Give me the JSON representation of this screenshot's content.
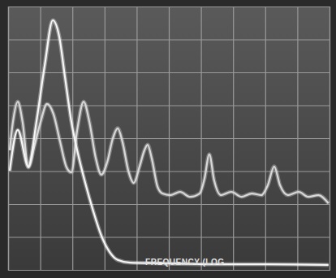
{
  "chart_data": {
    "type": "line",
    "xlabel": "FREQUENCY (LOG",
    "xlim": [
      0,
      10
    ],
    "ylim": [
      0,
      8
    ],
    "xticks": [
      0,
      1,
      2,
      3,
      4,
      5,
      6,
      7,
      8,
      9,
      10
    ],
    "yticks": [
      0,
      1,
      2,
      3,
      4,
      5,
      6,
      7,
      8
    ],
    "grid": true,
    "tick_labels": false,
    "series": [
      {
        "color": "#d8d8d8",
        "x": [
          0.05,
          0.15,
          0.3,
          0.45,
          0.63,
          0.81,
          1.01,
          1.21,
          1.41,
          1.62,
          1.82,
          1.97,
          2.15,
          2.35,
          2.53,
          2.73,
          2.9,
          3.08,
          3.26,
          3.41,
          3.56,
          3.74,
          3.91,
          4.09,
          4.24,
          4.34,
          4.47,
          4.65,
          4.8,
          5.05,
          5.35,
          5.66,
          5.96,
          6.11,
          6.26,
          6.41,
          6.62,
          6.94,
          7.27,
          7.58,
          7.88,
          8.08,
          8.28,
          8.46,
          8.71,
          9.04,
          9.34,
          9.65,
          9.97
        ],
        "values": [
          3.63,
          4.49,
          5.11,
          4.49,
          3.11,
          3.73,
          4.49,
          5.04,
          4.74,
          3.88,
          3.11,
          2.96,
          4.25,
          5.11,
          4.49,
          3.38,
          2.89,
          3.26,
          4.0,
          4.3,
          3.88,
          3.01,
          2.64,
          3.14,
          3.63,
          3.8,
          3.38,
          2.52,
          2.32,
          2.27,
          2.37,
          2.22,
          2.32,
          2.77,
          3.51,
          2.72,
          2.27,
          2.37,
          2.22,
          2.32,
          2.27,
          2.57,
          3.14,
          2.57,
          2.27,
          2.37,
          2.22,
          2.27,
          2.02
        ]
      },
      {
        "color": "#f6f6f6",
        "x": [
          0.05,
          0.3,
          0.63,
          0.88,
          1.14,
          1.39,
          1.59,
          1.77,
          1.97,
          2.15,
          2.4,
          2.65,
          2.9,
          3.16,
          3.41,
          3.79,
          4.8,
          6.31,
          8.08,
          9.97
        ],
        "values": [
          3.01,
          4.25,
          3.14,
          4.49,
          6.22,
          7.58,
          7.09,
          5.85,
          4.49,
          3.63,
          2.64,
          1.78,
          1.04,
          0.54,
          0.3,
          0.22,
          0.2,
          0.17,
          0.17,
          0.15
        ]
      }
    ]
  }
}
